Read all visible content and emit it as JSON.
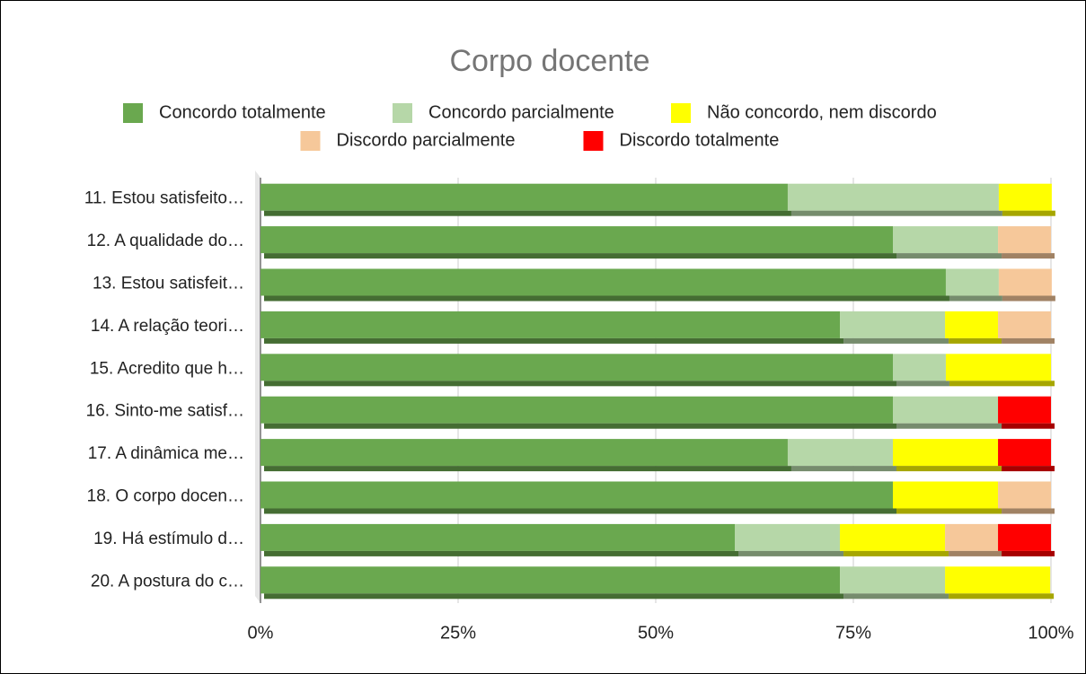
{
  "chart_data": {
    "type": "stacked_bar_horizontal",
    "title": "Corpo docente",
    "categories": [
      "11. Estou satisfeito…",
      "12. A qualidade do…",
      "13. Estou satisfeit…",
      "14. A relação teori…",
      "15. Acredito que h…",
      "16. Sinto-me satisf…",
      "17. A dinâmica me…",
      "18. O corpo docen…",
      "19. Há estímulo d…",
      "20. A postura do c…"
    ],
    "series": [
      {
        "name": "Concordo totalmente",
        "color": "#6aa84f",
        "values": [
          66.7,
          80,
          86.7,
          73.3,
          80,
          80,
          66.7,
          80,
          60,
          73.3
        ]
      },
      {
        "name": "Concordo parcialmente",
        "color": "#b6d7a8",
        "values": [
          26.7,
          13.3,
          6.7,
          13.3,
          6.7,
          13.3,
          13.3,
          0,
          13.3,
          13.3
        ]
      },
      {
        "name": "Não concordo, nem discordo",
        "color": "#ffff00",
        "values": [
          6.7,
          0,
          0,
          6.7,
          13.3,
          0,
          13.3,
          13.3,
          13.3,
          13.3
        ]
      },
      {
        "name": "Discordo parcialmente",
        "color": "#f6c89a",
        "values": [
          0,
          6.7,
          6.7,
          6.7,
          0,
          0,
          0,
          6.7,
          6.7,
          0
        ]
      },
      {
        "name": "Discordo totalmente",
        "color": "#ff0000",
        "values": [
          0,
          0,
          0,
          0,
          0,
          6.7,
          6.7,
          0,
          6.7,
          0
        ]
      }
    ],
    "xlim": [
      0,
      100
    ],
    "xticks": [
      {
        "value": 0,
        "label": "0%"
      },
      {
        "value": 25,
        "label": "25%"
      },
      {
        "value": 50,
        "label": "50%"
      },
      {
        "value": 75,
        "label": "75%"
      },
      {
        "value": 100,
        "label": "100%"
      }
    ],
    "grid": true,
    "legend": "top"
  }
}
